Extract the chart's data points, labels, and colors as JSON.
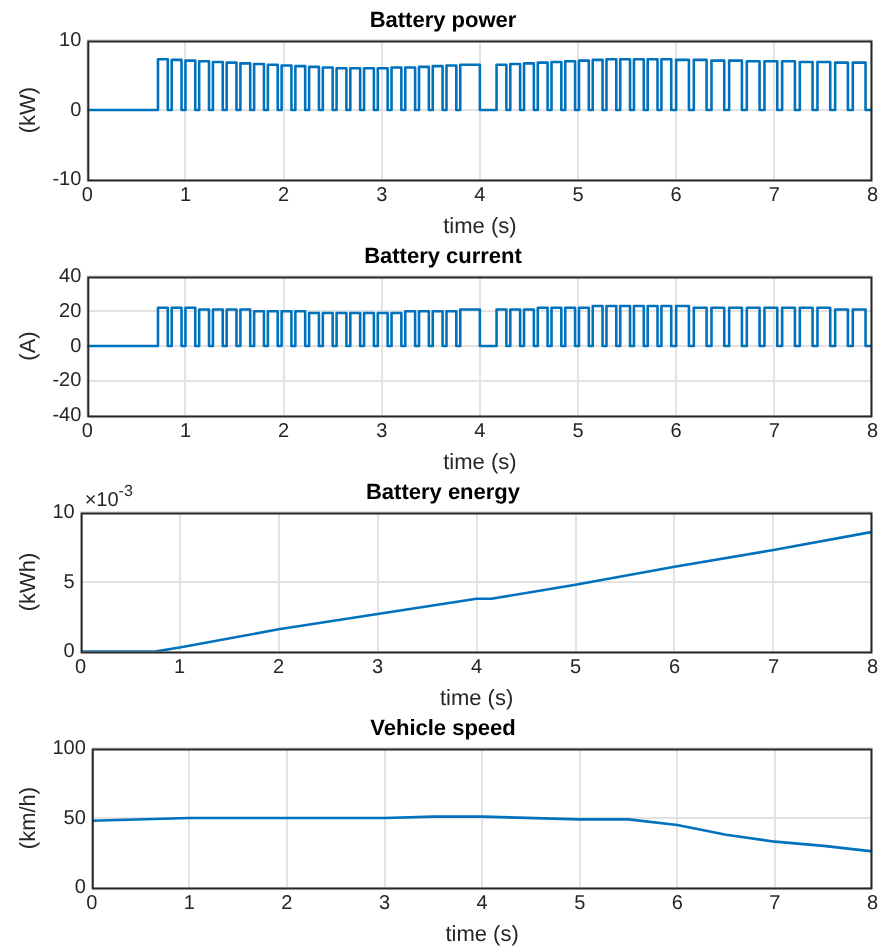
{
  "chart_data": [
    {
      "type": "step",
      "title": "Battery power",
      "xlabel": "time (s)",
      "ylabel": "(kW)",
      "color": "#0072bd",
      "marker": "none",
      "grid": true,
      "xlim": [
        0,
        8
      ],
      "xticks": [
        0,
        1,
        2,
        3,
        4,
        5,
        6,
        7,
        8
      ],
      "ylim": [
        -10,
        10
      ],
      "yticks": [
        -10,
        0,
        10
      ],
      "x": [
        0,
        0.72,
        0.82,
        0.86,
        0.96,
        1.0,
        1.1,
        1.14,
        1.24,
        1.28,
        1.38,
        1.42,
        1.52,
        1.56,
        1.66,
        1.7,
        1.8,
        1.84,
        1.94,
        1.98,
        2.08,
        2.12,
        2.22,
        2.26,
        2.36,
        2.4,
        2.5,
        2.54,
        2.64,
        2.68,
        2.78,
        2.82,
        2.92,
        2.96,
        3.06,
        3.1,
        3.2,
        3.24,
        3.34,
        3.38,
        3.48,
        3.52,
        3.62,
        3.66,
        3.76,
        3.8,
        4.0,
        4.17,
        4.27,
        4.31,
        4.41,
        4.45,
        4.55,
        4.59,
        4.69,
        4.73,
        4.83,
        4.87,
        4.97,
        5.01,
        5.11,
        5.15,
        5.25,
        5.29,
        5.39,
        5.43,
        5.53,
        5.57,
        5.67,
        5.71,
        5.81,
        5.85,
        5.95,
        6.0,
        6.13,
        6.18,
        6.31,
        6.36,
        6.49,
        6.54,
        6.67,
        6.72,
        6.85,
        6.9,
        7.03,
        7.08,
        7.21,
        7.26,
        7.39,
        7.44,
        7.57,
        7.62,
        7.75,
        7.8,
        7.93,
        8
      ],
      "values": [
        0,
        7.3,
        0,
        7.2,
        0,
        7.1,
        0,
        7.0,
        0,
        6.9,
        0,
        6.8,
        0,
        6.7,
        0,
        6.6,
        0,
        6.5,
        0,
        6.4,
        0,
        6.3,
        0,
        6.2,
        0,
        6.1,
        0,
        6.0,
        0,
        6.0,
        0,
        6.0,
        0,
        6.0,
        0,
        6.1,
        0,
        6.1,
        0,
        6.2,
        0,
        6.3,
        0,
        6.4,
        0,
        6.5,
        0,
        6.5,
        0,
        6.6,
        0,
        6.7,
        0,
        6.8,
        0,
        6.9,
        0,
        7.0,
        0,
        7.1,
        0,
        7.2,
        0,
        7.3,
        0,
        7.3,
        0,
        7.3,
        0,
        7.3,
        0,
        7.3,
        0,
        7.2,
        0,
        7.2,
        0,
        7.1,
        0,
        7.1,
        0,
        7.0,
        0,
        7.0,
        0,
        7.0,
        0,
        6.9,
        0,
        6.9,
        0,
        6.8,
        0,
        6.8,
        0,
        0
      ]
    },
    {
      "type": "step",
      "title": "Battery current",
      "xlabel": "time (s)",
      "ylabel": "(A)",
      "color": "#0072bd",
      "marker": "none",
      "grid": true,
      "xlim": [
        0,
        8
      ],
      "xticks": [
        0,
        1,
        2,
        3,
        4,
        5,
        6,
        7,
        8
      ],
      "ylim": [
        -40,
        40
      ],
      "yticks": [
        -40,
        -20,
        0,
        20,
        40
      ],
      "x": [
        0,
        0.72,
        0.82,
        0.86,
        0.96,
        1.0,
        1.1,
        1.14,
        1.24,
        1.28,
        1.38,
        1.42,
        1.52,
        1.56,
        1.66,
        1.7,
        1.8,
        1.84,
        1.94,
        1.98,
        2.08,
        2.12,
        2.22,
        2.26,
        2.36,
        2.4,
        2.5,
        2.54,
        2.64,
        2.68,
        2.78,
        2.82,
        2.92,
        2.96,
        3.06,
        3.1,
        3.2,
        3.24,
        3.34,
        3.38,
        3.48,
        3.52,
        3.62,
        3.66,
        3.76,
        3.8,
        4.0,
        4.17,
        4.27,
        4.31,
        4.41,
        4.45,
        4.55,
        4.59,
        4.69,
        4.73,
        4.83,
        4.87,
        4.97,
        5.01,
        5.11,
        5.15,
        5.25,
        5.29,
        5.39,
        5.43,
        5.53,
        5.57,
        5.67,
        5.71,
        5.81,
        5.85,
        5.95,
        6.0,
        6.13,
        6.18,
        6.31,
        6.36,
        6.49,
        6.54,
        6.67,
        6.72,
        6.85,
        6.9,
        7.03,
        7.08,
        7.21,
        7.26,
        7.39,
        7.44,
        7.57,
        7.62,
        7.75,
        7.8,
        7.93,
        8
      ],
      "values": [
        0,
        22,
        0,
        22,
        0,
        22,
        0,
        21,
        0,
        21,
        0,
        21,
        0,
        21,
        0,
        20,
        0,
        20,
        0,
        20,
        0,
        20,
        0,
        19,
        0,
        19,
        0,
        19,
        0,
        19,
        0,
        19,
        0,
        19,
        0,
        19,
        0,
        20,
        0,
        20,
        0,
        20,
        0,
        20,
        0,
        21,
        0,
        21,
        0,
        21,
        0,
        21,
        0,
        22,
        0,
        22,
        0,
        22,
        0,
        22,
        0,
        23,
        0,
        23,
        0,
        23,
        0,
        23,
        0,
        23,
        0,
        23,
        0,
        23,
        0,
        22,
        0,
        22,
        0,
        22,
        0,
        22,
        0,
        22,
        0,
        22,
        0,
        22,
        0,
        22,
        0,
        21,
        0,
        21,
        0,
        0
      ]
    },
    {
      "type": "line",
      "title": "Battery energy",
      "xlabel": "time (s)",
      "ylabel": "(kWh)",
      "annotations": [
        "×10$^{-3}$"
      ],
      "color": "#0072bd",
      "marker": "none",
      "grid": true,
      "xlim": [
        0,
        8
      ],
      "xticks": [
        0,
        1,
        2,
        3,
        4,
        5,
        6,
        7,
        8
      ],
      "ylim": [
        0,
        10
      ],
      "yticks": [
        0,
        5,
        10
      ],
      "x": [
        0,
        0.75,
        1,
        2,
        3,
        4,
        4.15,
        5,
        6,
        7,
        8
      ],
      "values": [
        0,
        0,
        0.3,
        1.6,
        2.7,
        3.8,
        3.8,
        4.8,
        6.1,
        7.3,
        8.6
      ]
    },
    {
      "type": "line",
      "title": "Vehicle speed",
      "xlabel": "time (s)",
      "ylabel": "(km/h)",
      "color": "#0072bd",
      "marker": "none",
      "grid": true,
      "xlim": [
        0,
        8
      ],
      "xticks": [
        0,
        1,
        2,
        3,
        4,
        5,
        6,
        7,
        8
      ],
      "ylim": [
        0,
        100
      ],
      "yticks": [
        0,
        50,
        100
      ],
      "x": [
        0,
        1,
        2,
        3,
        3.5,
        4,
        5,
        5.5,
        6,
        6.5,
        7,
        7.5,
        8
      ],
      "values": [
        48,
        50,
        50,
        50,
        51,
        51,
        49,
        49,
        45,
        38,
        33,
        30,
        26
      ]
    }
  ]
}
